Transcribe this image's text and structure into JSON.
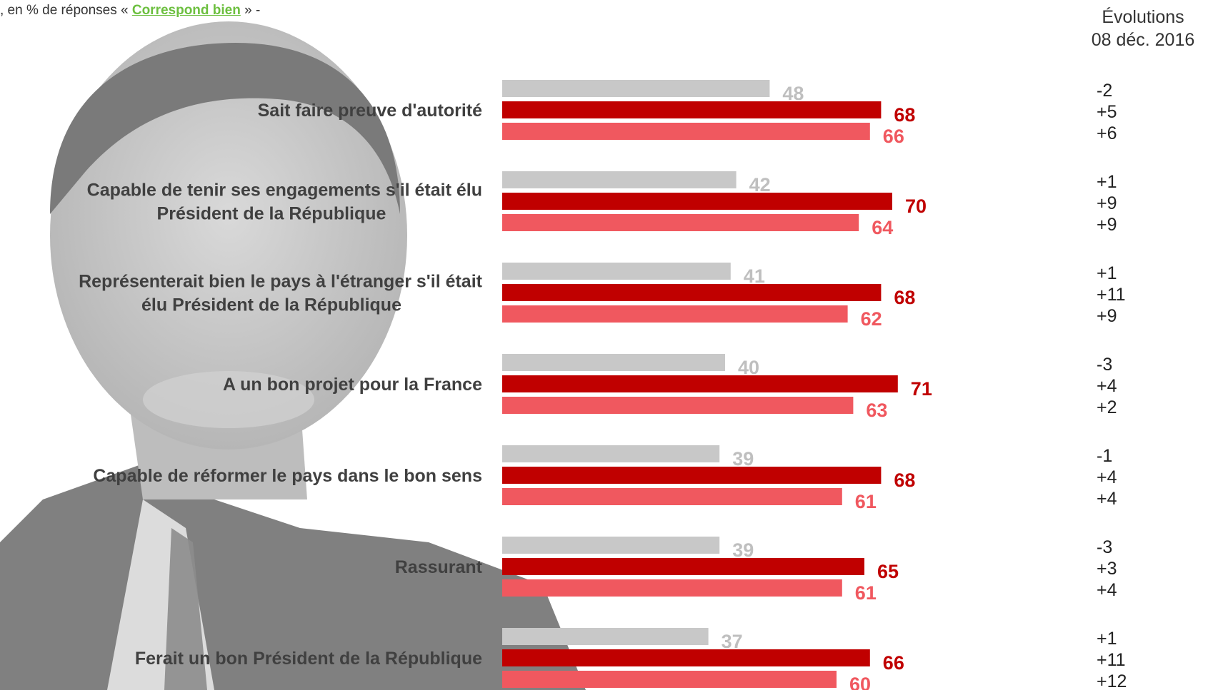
{
  "subtitle": {
    "prefix": ", en % de réponses « ",
    "highlight": "Correspond bien",
    "suffix": " » -"
  },
  "evolutions_header": {
    "line1": "Évolutions",
    "line2": "08 déc. 2016"
  },
  "colors": {
    "series1": "#c8c8c8",
    "series1_label": "#bfbfbf",
    "series2": "#c00000",
    "series3": "#f0585f",
    "label_text": "#404040"
  },
  "chart_data": {
    "type": "bar",
    "orientation": "horizontal",
    "categories": [
      [
        "Sait faire preuve d'autorité"
      ],
      [
        "Capable de tenir ses engagements s'il était élu",
        "Président de la République"
      ],
      [
        "Représenterait bien le pays à l'étranger s'il était",
        "élu Président de la République"
      ],
      [
        "A un bon projet pour la France"
      ],
      [
        "Capable de réformer le pays dans le bon sens"
      ],
      [
        "Rassurant"
      ],
      [
        "Ferait un bon Président de la République"
      ]
    ],
    "series": [
      {
        "values": [
          48,
          42,
          41,
          40,
          39,
          39,
          37
        ]
      },
      {
        "values": [
          68,
          70,
          68,
          71,
          68,
          65,
          66
        ]
      },
      {
        "values": [
          66,
          64,
          62,
          63,
          61,
          61,
          60
        ]
      }
    ],
    "evolutions": [
      [
        "-2",
        "+5",
        "+6"
      ],
      [
        "+1",
        "+9",
        "+9"
      ],
      [
        "+1",
        "+11",
        "+9"
      ],
      [
        "-3",
        "+4",
        "+2"
      ],
      [
        "-1",
        "+4",
        "+4"
      ],
      [
        "-3",
        "+3",
        "+4"
      ],
      [
        "+1",
        "+11",
        "+12"
      ]
    ],
    "xlim": [
      0,
      100
    ],
    "grid": false,
    "legend": "none"
  }
}
